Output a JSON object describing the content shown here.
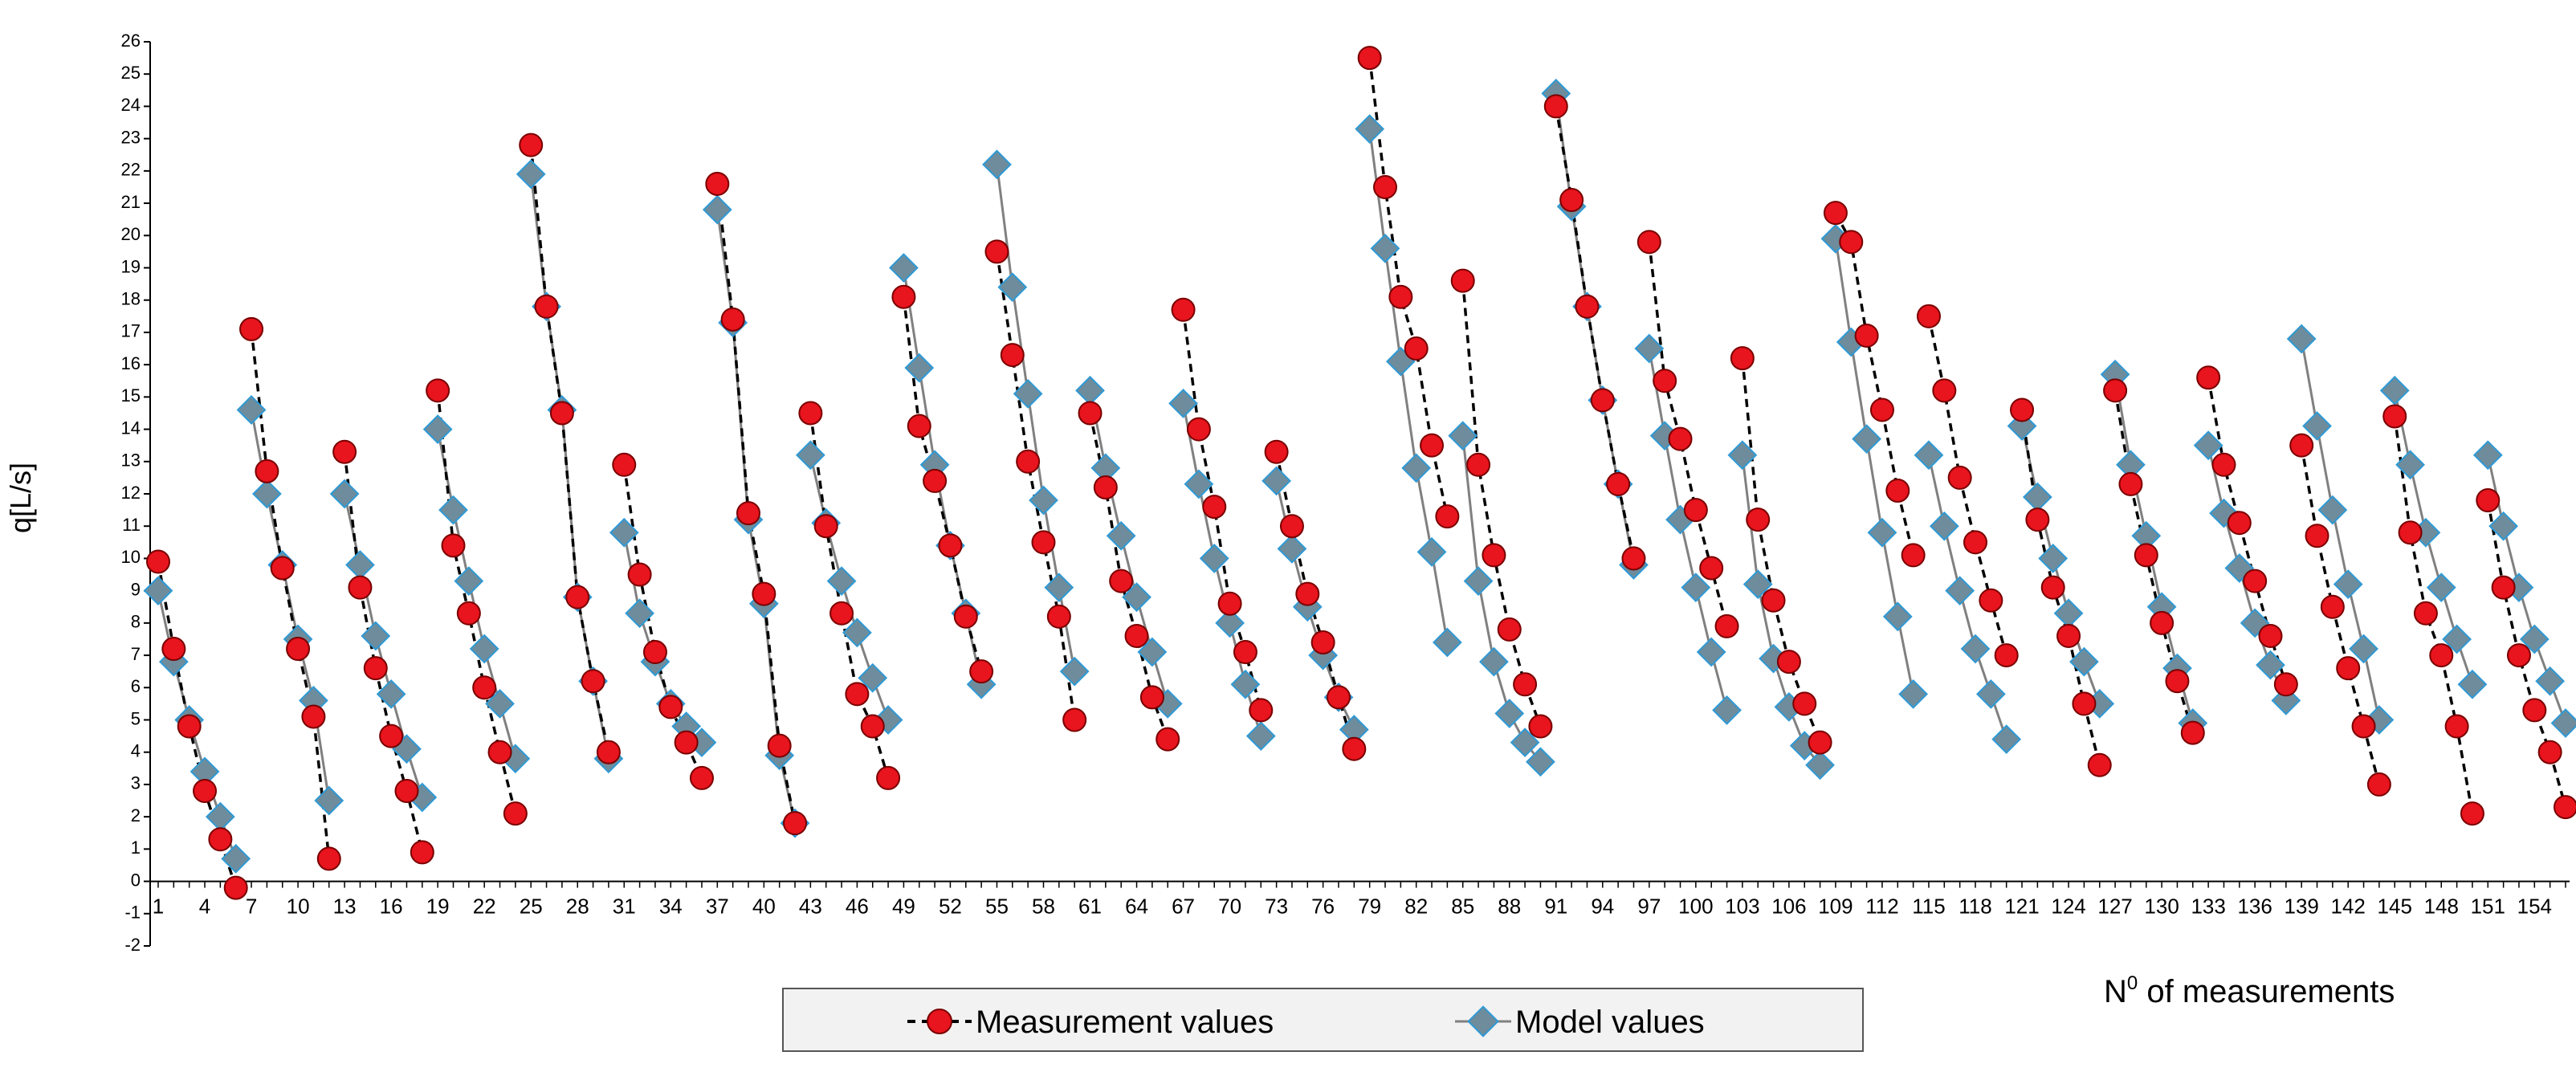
{
  "chart_data": {
    "type": "line",
    "title": "",
    "ylabel": "q[L/s]",
    "xlabel_prefix": "N",
    "xlabel_sup": "0",
    "xlabel_suffix": " of measurements",
    "ylim": [
      -2,
      26
    ],
    "xlim": [
      1,
      156
    ],
    "yticks": [
      -2,
      -1,
      0,
      1,
      2,
      3,
      4,
      5,
      6,
      7,
      8,
      9,
      10,
      11,
      12,
      13,
      14,
      15,
      16,
      17,
      18,
      19,
      20,
      21,
      22,
      23,
      24,
      25,
      26
    ],
    "xtick_labels": [
      1,
      4,
      7,
      10,
      13,
      16,
      19,
      22,
      25,
      28,
      31,
      34,
      37,
      40,
      43,
      46,
      49,
      52,
      55,
      58,
      61,
      64,
      67,
      70,
      73,
      76,
      79,
      82,
      85,
      88,
      91,
      94,
      97,
      100,
      103,
      106,
      109,
      112,
      115,
      118,
      121,
      124,
      127,
      130,
      133,
      136,
      139,
      142,
      145,
      148,
      151,
      154
    ],
    "legend": [
      "Measurement values",
      "Model values"
    ],
    "colors": {
      "measurement": "#e8141e",
      "measurement_edge": "#7a0000",
      "model": "#6e8c9b",
      "model_edge": "#2e9ad6",
      "line_model": "#808080",
      "line_measure": "#000000"
    },
    "segments": [
      [
        1,
        6
      ],
      [
        7,
        12
      ],
      [
        13,
        18
      ],
      [
        19,
        24
      ],
      [
        25,
        30
      ],
      [
        31,
        36
      ],
      [
        37,
        42
      ],
      [
        43,
        48
      ],
      [
        49,
        54
      ],
      [
        55,
        60
      ],
      [
        61,
        66
      ],
      [
        67,
        72
      ],
      [
        73,
        78
      ],
      [
        79,
        84
      ],
      [
        85,
        90
      ],
      [
        91,
        96
      ],
      [
        97,
        102
      ],
      [
        103,
        108
      ],
      [
        109,
        114
      ],
      [
        115,
        120
      ],
      [
        121,
        126
      ],
      [
        127,
        132
      ],
      [
        133,
        138
      ],
      [
        139,
        144
      ],
      [
        145,
        150
      ],
      [
        151,
        156
      ]
    ],
    "series": [
      {
        "name": "Measurement values",
        "x": [
          1,
          2,
          3,
          4,
          5,
          6,
          7,
          8,
          9,
          10,
          11,
          12,
          13,
          14,
          15,
          16,
          17,
          18,
          19,
          20,
          21,
          22,
          23,
          24,
          25,
          26,
          27,
          28,
          29,
          30,
          31,
          32,
          33,
          34,
          35,
          36,
          37,
          38,
          39,
          40,
          41,
          42,
          43,
          44,
          45,
          46,
          47,
          48,
          49,
          50,
          51,
          52,
          53,
          54,
          55,
          56,
          57,
          58,
          59,
          60,
          61,
          62,
          63,
          64,
          65,
          66,
          67,
          68,
          69,
          70,
          71,
          72,
          73,
          74,
          75,
          76,
          77,
          78,
          79,
          80,
          81,
          82,
          83,
          84,
          85,
          86,
          87,
          88,
          89,
          90,
          91,
          92,
          93,
          94,
          95,
          96,
          97,
          98,
          99,
          100,
          101,
          102,
          103,
          104,
          105,
          106,
          107,
          108,
          109,
          110,
          111,
          112,
          113,
          114,
          115,
          116,
          117,
          118,
          119,
          120,
          121,
          122,
          123,
          124,
          125,
          126,
          127,
          128,
          129,
          130,
          131,
          132,
          133,
          134,
          135,
          136,
          137,
          138,
          139,
          140,
          141,
          142,
          143,
          144,
          145,
          146,
          147,
          148,
          149,
          150,
          151,
          152,
          153,
          154,
          155,
          156
        ],
        "values": [
          9.9,
          7.2,
          4.8,
          2.8,
          1.3,
          -0.2,
          17.1,
          12.7,
          9.7,
          7.2,
          5.1,
          0.7,
          13.3,
          9.1,
          6.6,
          4.5,
          2.8,
          0.9,
          15.2,
          10.4,
          8.3,
          6.0,
          4.0,
          2.1,
          22.8,
          17.8,
          14.5,
          8.8,
          6.2,
          4.0,
          12.9,
          9.5,
          7.1,
          5.4,
          4.3,
          3.2,
          21.6,
          17.4,
          11.4,
          8.9,
          4.2,
          1.8,
          14.5,
          11.0,
          8.3,
          5.8,
          4.8,
          3.2,
          18.1,
          14.1,
          12.4,
          10.4,
          8.2,
          6.5,
          19.5,
          16.3,
          13.0,
          10.5,
          8.2,
          5.0,
          14.5,
          12.2,
          9.3,
          7.6,
          5.7,
          4.4,
          17.7,
          14.0,
          11.6,
          8.6,
          7.1,
          5.3,
          13.3,
          11.0,
          8.9,
          7.4,
          5.7,
          4.1,
          25.5,
          21.5,
          18.1,
          16.5,
          13.5,
          11.3,
          18.6,
          12.9,
          10.1,
          7.8,
          6.1,
          4.8,
          24.0,
          21.1,
          17.8,
          14.9,
          12.3,
          10.0,
          19.8,
          15.5,
          13.7,
          11.5,
          9.7,
          7.9,
          16.2,
          11.2,
          8.7,
          6.8,
          5.5,
          4.3,
          20.7,
          19.8,
          16.9,
          14.6,
          12.1,
          10.1,
          17.5,
          15.2,
          12.5,
          10.5,
          8.7,
          7.0,
          14.6,
          11.2,
          9.1,
          7.6,
          5.5,
          3.6,
          15.2,
          12.3,
          10.1,
          8.0,
          6.2,
          4.6,
          15.6,
          12.9,
          11.1,
          9.3,
          7.6,
          6.1,
          13.5,
          10.7,
          8.5,
          6.6,
          4.8,
          3.0,
          14.4,
          10.8,
          8.3,
          7.0,
          4.8,
          2.1,
          11.8,
          9.1,
          7.0,
          5.3,
          4.0,
          2.3
        ]
      },
      {
        "name": "Model values",
        "x": [
          1,
          2,
          3,
          4,
          5,
          6,
          7,
          8,
          9,
          10,
          11,
          12,
          13,
          14,
          15,
          16,
          17,
          18,
          19,
          20,
          21,
          22,
          23,
          24,
          25,
          26,
          27,
          28,
          29,
          30,
          31,
          32,
          33,
          34,
          35,
          36,
          37,
          38,
          39,
          40,
          41,
          42,
          43,
          44,
          45,
          46,
          47,
          48,
          49,
          50,
          51,
          52,
          53,
          54,
          55,
          56,
          57,
          58,
          59,
          60,
          61,
          62,
          63,
          64,
          65,
          66,
          67,
          68,
          69,
          70,
          71,
          72,
          73,
          74,
          75,
          76,
          77,
          78,
          79,
          80,
          81,
          82,
          83,
          84,
          85,
          86,
          87,
          88,
          89,
          90,
          91,
          92,
          93,
          94,
          95,
          96,
          97,
          98,
          99,
          100,
          101,
          102,
          103,
          104,
          105,
          106,
          107,
          108,
          109,
          110,
          111,
          112,
          113,
          114,
          115,
          116,
          117,
          118,
          119,
          120,
          121,
          122,
          123,
          124,
          125,
          126,
          127,
          128,
          129,
          130,
          131,
          132,
          133,
          134,
          135,
          136,
          137,
          138,
          139,
          140,
          141,
          142,
          143,
          144,
          145,
          146,
          147,
          148,
          149,
          150,
          151,
          152,
          153,
          154,
          155,
          156
        ],
        "values": [
          9.0,
          6.8,
          5.0,
          3.4,
          2.0,
          0.7,
          14.6,
          12.0,
          9.8,
          7.5,
          5.6,
          2.5,
          12.0,
          9.8,
          7.6,
          5.8,
          4.1,
          2.6,
          14.0,
          11.5,
          9.3,
          7.2,
          5.5,
          3.8,
          21.9,
          17.8,
          14.6,
          8.8,
          6.2,
          3.8,
          10.8,
          8.3,
          6.8,
          5.5,
          4.8,
          4.3,
          20.8,
          17.3,
          11.2,
          8.6,
          3.9,
          1.8,
          13.2,
          11.1,
          9.3,
          7.7,
          6.3,
          5.0,
          19.0,
          15.9,
          12.9,
          10.4,
          8.3,
          6.1,
          22.2,
          18.4,
          15.1,
          11.8,
          9.1,
          6.5,
          15.2,
          12.8,
          10.7,
          8.8,
          7.1,
          5.5,
          14.8,
          12.3,
          10.0,
          8.0,
          6.1,
          4.5,
          12.4,
          10.3,
          8.5,
          7.0,
          5.7,
          4.7,
          23.3,
          19.6,
          16.1,
          12.8,
          10.2,
          7.4,
          13.8,
          9.3,
          6.8,
          5.2,
          4.3,
          3.7,
          24.4,
          20.9,
          17.8,
          14.9,
          12.3,
          9.8,
          16.5,
          13.8,
          11.2,
          9.1,
          7.1,
          5.3,
          13.2,
          9.2,
          6.9,
          5.4,
          4.2,
          3.6,
          19.9,
          16.7,
          13.7,
          10.8,
          8.2,
          5.8,
          13.2,
          11.0,
          9.0,
          7.2,
          5.8,
          4.4,
          14.1,
          11.9,
          10.0,
          8.3,
          6.8,
          5.5,
          15.7,
          12.9,
          10.7,
          8.5,
          6.6,
          4.9,
          13.5,
          11.4,
          9.7,
          8.0,
          6.7,
          5.6,
          16.8,
          14.1,
          11.5,
          9.2,
          7.2,
          5.0,
          15.2,
          12.9,
          10.8,
          9.1,
          7.5,
          6.1,
          13.2,
          11.0,
          9.1,
          7.5,
          6.2,
          4.9
        ]
      }
    ]
  }
}
